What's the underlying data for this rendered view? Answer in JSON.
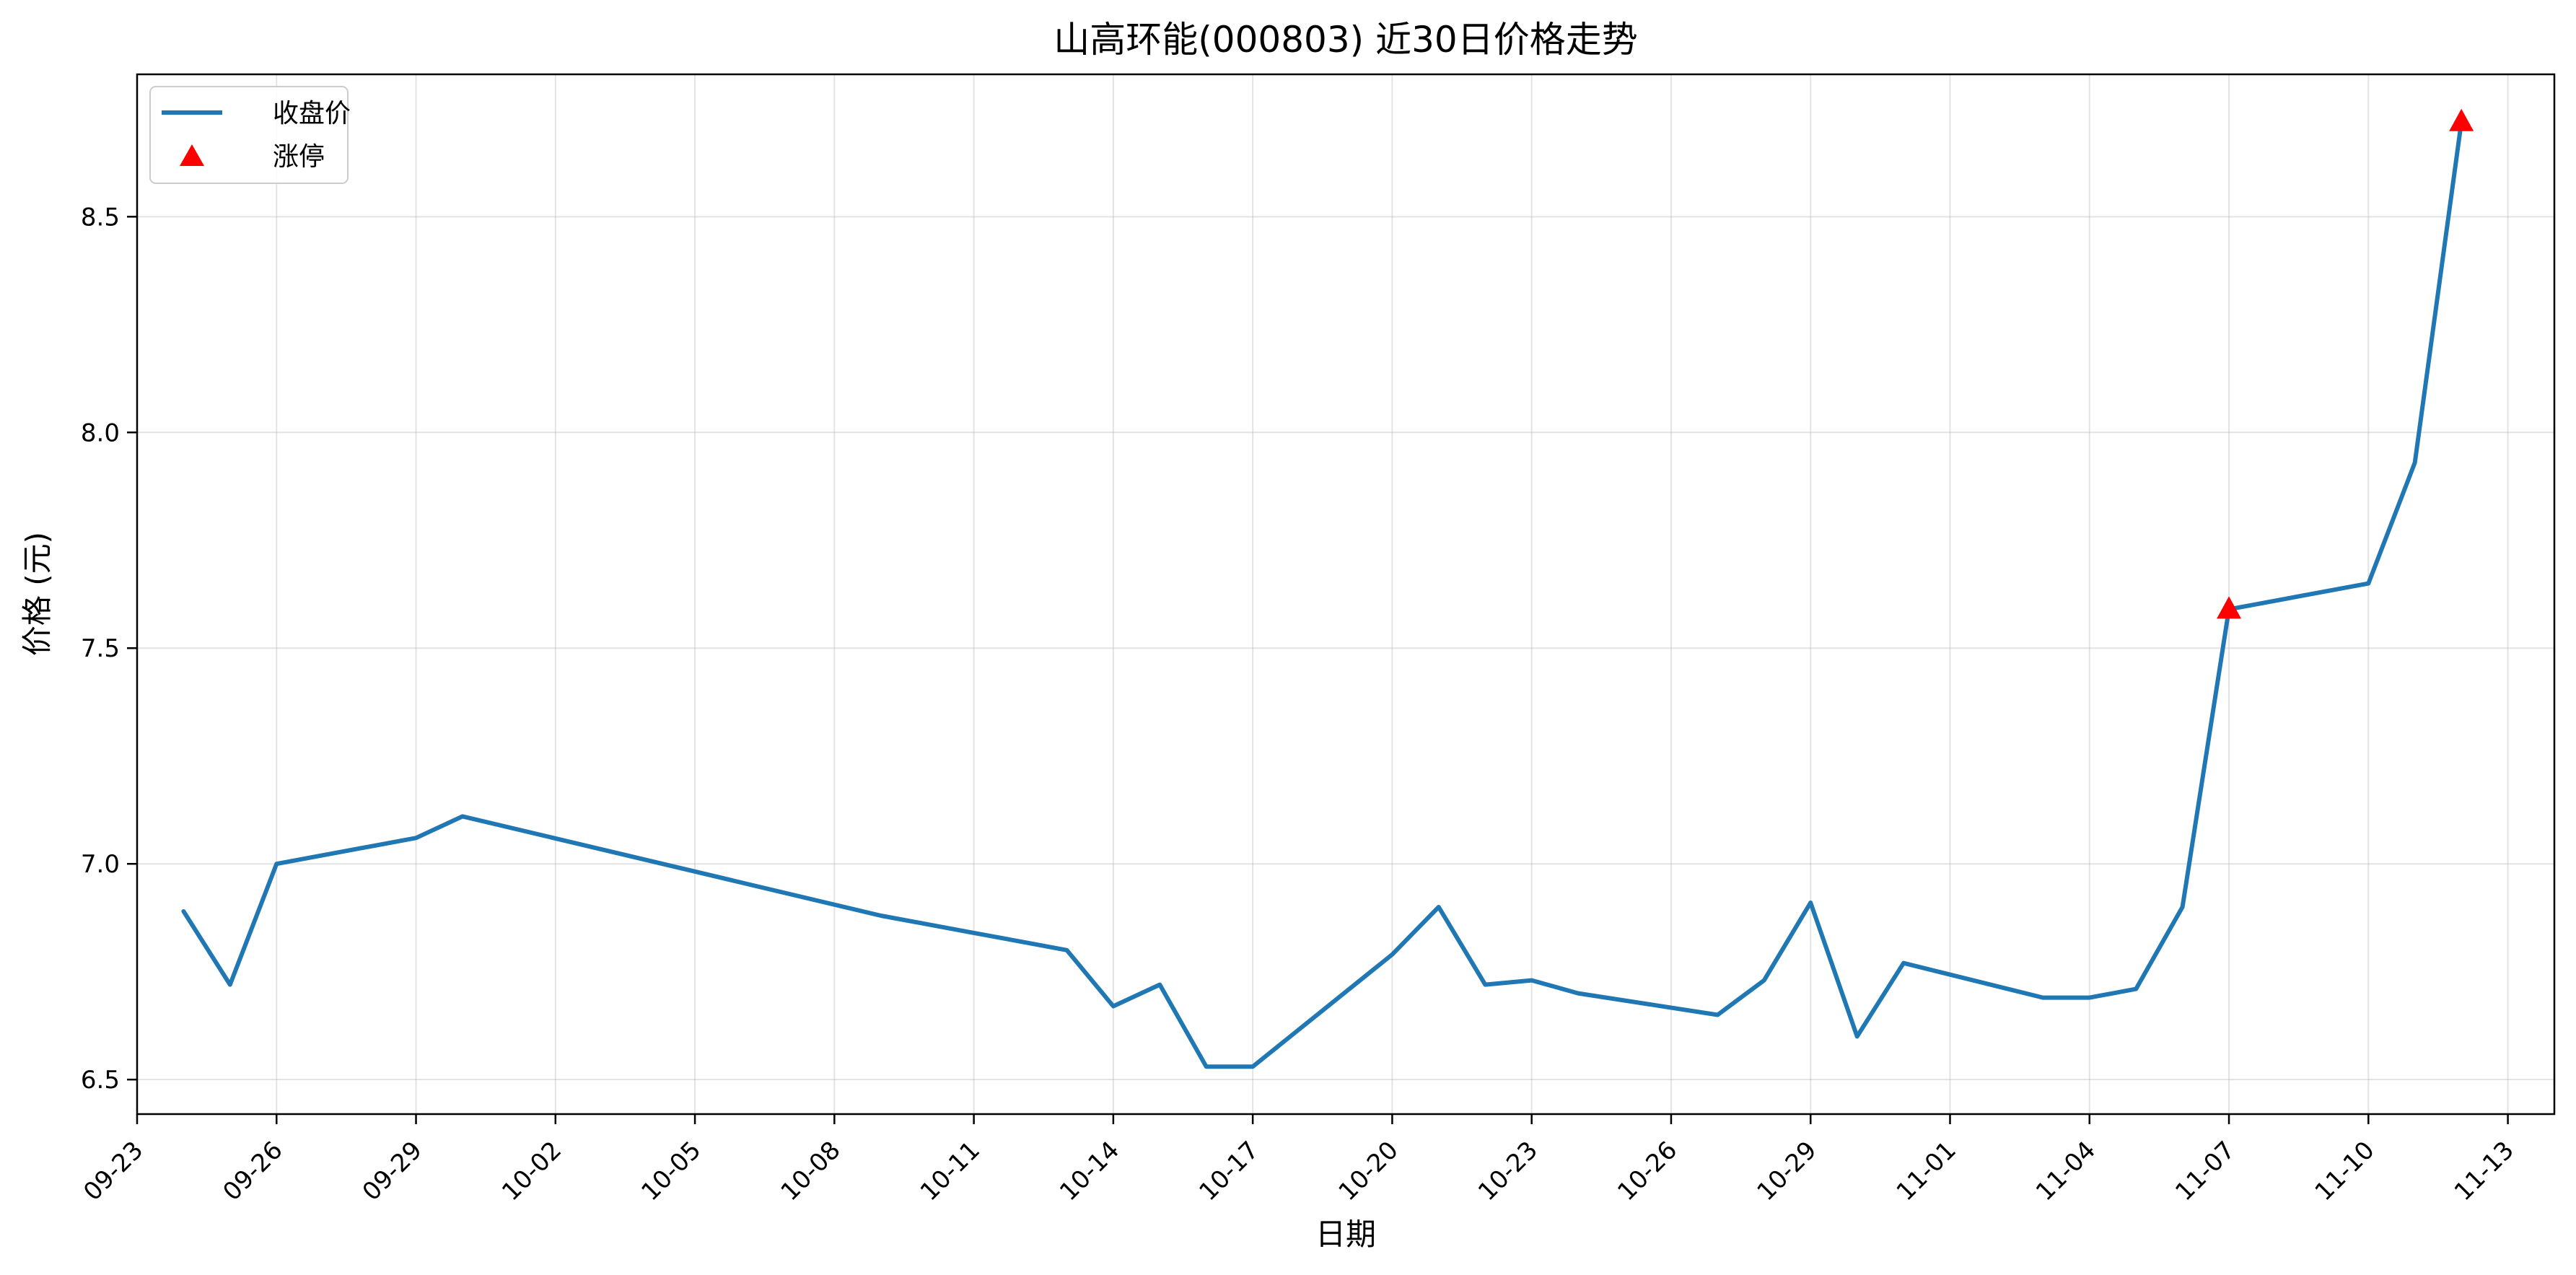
{
  "chart_data": {
    "type": "line",
    "title": "山高环能(000803) 近30日价格走势",
    "xlabel": "日期",
    "ylabel": "价格 (元)",
    "x_ticks": [
      "09-23",
      "09-26",
      "09-29",
      "10-02",
      "10-05",
      "10-08",
      "10-11",
      "10-14",
      "10-17",
      "10-20",
      "10-23",
      "10-26",
      "10-29",
      "11-01",
      "11-04",
      "11-07",
      "11-10",
      "11-13"
    ],
    "x_tick_offsets": [
      0,
      3,
      6,
      9,
      12,
      15,
      18,
      21,
      24,
      27,
      30,
      33,
      36,
      39,
      42,
      45,
      48,
      51
    ],
    "x_range": [
      "09-22",
      "11-14"
    ],
    "y_ticks": [
      "6.5",
      "7.0",
      "7.5",
      "8.0",
      "8.5"
    ],
    "ylim": [
      6.42,
      8.83
    ],
    "grid": true,
    "legend_position": "top-left",
    "series": [
      {
        "name": "收盘价",
        "color": "#1f77b4",
        "marker": "line",
        "x": [
          "09-24",
          "09-25",
          "09-26",
          "09-29",
          "09-30",
          "10-09",
          "10-10",
          "10-11",
          "10-12",
          "10-13",
          "10-14",
          "10-15",
          "10-16",
          "10-17",
          "10-20",
          "10-21",
          "10-22",
          "10-23",
          "10-24",
          "10-27",
          "10-28",
          "10-29",
          "10-30",
          "10-31",
          "11-03",
          "11-04",
          "11-05",
          "11-06",
          "11-07",
          "11-10",
          "11-11",
          "11-12"
        ],
        "x_offsets": [
          1,
          2,
          3,
          6,
          7,
          16,
          17,
          18,
          19,
          20,
          21,
          22,
          23,
          24,
          27,
          28,
          29,
          30,
          31,
          34,
          35,
          36,
          37,
          38,
          41,
          42,
          43,
          44,
          45,
          48,
          49,
          50
        ],
        "values": [
          6.89,
          6.72,
          7.0,
          7.06,
          7.11,
          6.88,
          6.86,
          6.84,
          6.82,
          6.8,
          6.67,
          6.72,
          6.53,
          6.53,
          6.79,
          6.9,
          6.72,
          6.73,
          6.7,
          6.65,
          6.73,
          6.91,
          6.6,
          6.77,
          6.69,
          6.69,
          6.71,
          6.9,
          7.59,
          7.65,
          7.93,
          8.72
        ]
      },
      {
        "name": "涨停",
        "color": "#ff0000",
        "marker": "triangle",
        "x": [
          "11-07",
          "11-12"
        ],
        "x_offsets": [
          45,
          50
        ],
        "values": [
          7.59,
          8.72
        ]
      }
    ]
  }
}
